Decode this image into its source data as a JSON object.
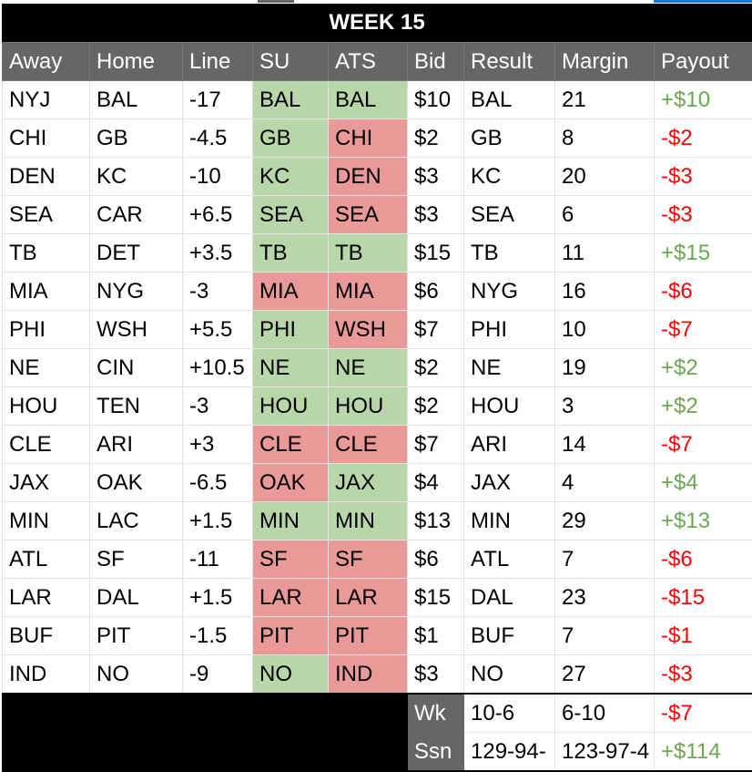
{
  "title": "WEEK 15",
  "columns": [
    "Away",
    "Home",
    "Line",
    "SU",
    "ATS",
    "Bid",
    "Result",
    "Margin",
    "Payout"
  ],
  "colors": {
    "win": "#b7d7a8",
    "loss": "#ea9999",
    "positive": "#6aa84f",
    "negative": "#ff0000",
    "header": "#666666"
  },
  "rows": [
    {
      "away": "NYJ",
      "home": "BAL",
      "line": "-17",
      "su": "BAL",
      "su_status": "win",
      "ats": "BAL",
      "ats_status": "win",
      "bid": "$10",
      "result": "BAL",
      "margin": "21",
      "payout": "+$10"
    },
    {
      "away": "CHI",
      "home": "GB",
      "line": "-4.5",
      "su": "GB",
      "su_status": "win",
      "ats": "CHI",
      "ats_status": "loss",
      "bid": "$2",
      "result": "GB",
      "margin": "8",
      "payout": "-$2"
    },
    {
      "away": "DEN",
      "home": "KC",
      "line": "-10",
      "su": "KC",
      "su_status": "win",
      "ats": "DEN",
      "ats_status": "loss",
      "bid": "$3",
      "result": "KC",
      "margin": "20",
      "payout": "-$3"
    },
    {
      "away": "SEA",
      "home": "CAR",
      "line": "+6.5",
      "su": "SEA",
      "su_status": "win",
      "ats": "SEA",
      "ats_status": "loss",
      "bid": "$3",
      "result": "SEA",
      "margin": "6",
      "payout": "-$3"
    },
    {
      "away": "TB",
      "home": "DET",
      "line": "+3.5",
      "su": "TB",
      "su_status": "win",
      "ats": "TB",
      "ats_status": "win",
      "bid": "$15",
      "result": "TB",
      "margin": "11",
      "payout": "+$15"
    },
    {
      "away": "MIA",
      "home": "NYG",
      "line": "-3",
      "su": "MIA",
      "su_status": "loss",
      "ats": "MIA",
      "ats_status": "loss",
      "bid": "$6",
      "result": "NYG",
      "margin": "16",
      "payout": "-$6"
    },
    {
      "away": "PHI",
      "home": "WSH",
      "line": "+5.5",
      "su": "PHI",
      "su_status": "win",
      "ats": "WSH",
      "ats_status": "loss",
      "bid": "$7",
      "result": "PHI",
      "margin": "10",
      "payout": "-$7"
    },
    {
      "away": "NE",
      "home": "CIN",
      "line": "+10.5",
      "su": "NE",
      "su_status": "win",
      "ats": "NE",
      "ats_status": "win",
      "bid": "$2",
      "result": "NE",
      "margin": "19",
      "payout": "+$2"
    },
    {
      "away": "HOU",
      "home": "TEN",
      "line": "-3",
      "su": "HOU",
      "su_status": "win",
      "ats": "HOU",
      "ats_status": "win",
      "bid": "$2",
      "result": "HOU",
      "margin": "3",
      "payout": "+$2"
    },
    {
      "away": "CLE",
      "home": "ARI",
      "line": "+3",
      "su": "CLE",
      "su_status": "loss",
      "ats": "CLE",
      "ats_status": "loss",
      "bid": "$7",
      "result": "ARI",
      "margin": "14",
      "payout": "-$7"
    },
    {
      "away": "JAX",
      "home": "OAK",
      "line": "-6.5",
      "su": "OAK",
      "su_status": "loss",
      "ats": "JAX",
      "ats_status": "win",
      "bid": "$4",
      "result": "JAX",
      "margin": "4",
      "payout": "+$4"
    },
    {
      "away": "MIN",
      "home": "LAC",
      "line": "+1.5",
      "su": "MIN",
      "su_status": "win",
      "ats": "MIN",
      "ats_status": "win",
      "bid": "$13",
      "result": "MIN",
      "margin": "29",
      "payout": "+$13"
    },
    {
      "away": "ATL",
      "home": "SF",
      "line": "-11",
      "su": "SF",
      "su_status": "loss",
      "ats": "SF",
      "ats_status": "loss",
      "bid": "$6",
      "result": "ATL",
      "margin": "7",
      "payout": "-$6"
    },
    {
      "away": "LAR",
      "home": "DAL",
      "line": "+1.5",
      "su": "LAR",
      "su_status": "loss",
      "ats": "LAR",
      "ats_status": "loss",
      "bid": "$15",
      "result": "DAL",
      "margin": "23",
      "payout": "-$15"
    },
    {
      "away": "BUF",
      "home": "PIT",
      "line": "-1.5",
      "su": "PIT",
      "su_status": "loss",
      "ats": "PIT",
      "ats_status": "loss",
      "bid": "$1",
      "result": "BUF",
      "margin": "7",
      "payout": "-$1"
    },
    {
      "away": "IND",
      "home": "NO",
      "line": "-9",
      "su": "NO",
      "su_status": "win",
      "ats": "IND",
      "ats_status": "loss",
      "bid": "$3",
      "result": "NO",
      "margin": "27",
      "payout": "-$3"
    }
  ],
  "summary": [
    {
      "label": "Wk",
      "su": "10-6",
      "ats": "6-10",
      "payout": "-$7"
    },
    {
      "label": "Ssn",
      "su": "129-94-",
      "ats": "123-97-4",
      "payout": "+$114"
    }
  ]
}
